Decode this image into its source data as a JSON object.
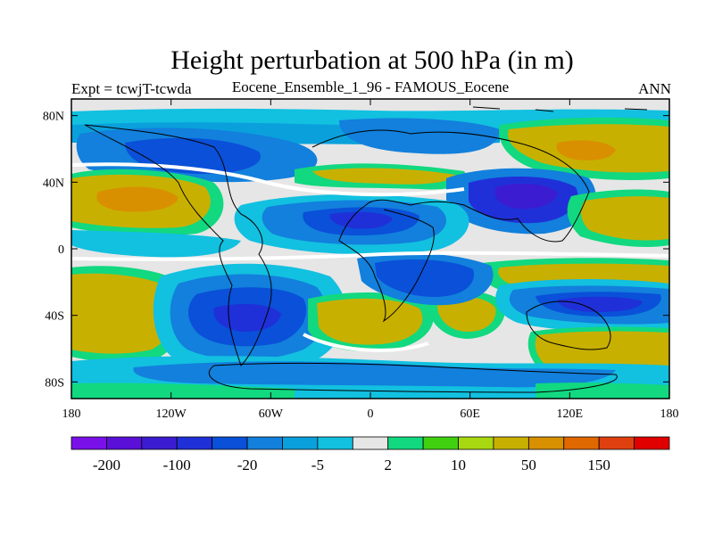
{
  "title": "Height perturbation at 500 hPa (in m)",
  "subtitle_left": "Expt = tcwjT-tcwda",
  "subtitle_center": "Eocene_Ensemble_1_96 - FAMOUS_Eocene",
  "subtitle_right": "ANN",
  "lat_ticks": [
    "80N",
    "40N",
    "0",
    "40S",
    "80S"
  ],
  "lon_ticks": [
    "180",
    "120W",
    "60W",
    "0",
    "60E",
    "120E",
    "180"
  ],
  "colorbar": {
    "colors": [
      "#7a10e8",
      "#5b10d8",
      "#3c1cd0",
      "#2030d8",
      "#0a50d8",
      "#1280dc",
      "#0aa0dc",
      "#12c0e0",
      "#e6e6e6",
      "#12d880",
      "#40d010",
      "#a8d810",
      "#c8b000",
      "#d89000",
      "#e06800",
      "#e04010",
      "#e00000"
    ],
    "labels": [
      "-200",
      "-100",
      "-20",
      "-5",
      "2",
      "10",
      "50",
      "150"
    ]
  },
  "chart_data": {
    "type": "heatmap",
    "title": "Height perturbation at 500 hPa (in m)",
    "projection": "cylindrical equidistant",
    "lon_range": [
      -180,
      180
    ],
    "lat_range": [
      -90,
      90
    ],
    "contour_levels": [
      -200,
      -100,
      -20,
      -5,
      2,
      10,
      50,
      150
    ],
    "regions": [
      {
        "area": "North Pacific",
        "sign": "positive",
        "approx_max": 100
      },
      {
        "area": "Northwest Pacific / East Asia 60N",
        "sign": "positive",
        "approx_max": 100
      },
      {
        "area": "North America 60N",
        "sign": "negative",
        "approx_min": -50
      },
      {
        "area": "Central Asia 40N",
        "sign": "negative",
        "approx_min": -100
      },
      {
        "area": "Equatorial Atlantic / Africa",
        "sign": "negative",
        "approx_min": -50
      },
      {
        "area": "Southeast Pacific 40S-60S",
        "sign": "negative",
        "approx_min": -100
      },
      {
        "area": "South Pacific 40S",
        "sign": "positive",
        "approx_max": 50
      },
      {
        "area": "South Atlantic 40S",
        "sign": "positive",
        "approx_max": 50
      },
      {
        "area": "Southern Indian Ocean 40S",
        "sign": "negative",
        "approx_min": -100
      },
      {
        "area": "Australia 60S",
        "sign": "positive",
        "approx_max": 50
      }
    ]
  }
}
